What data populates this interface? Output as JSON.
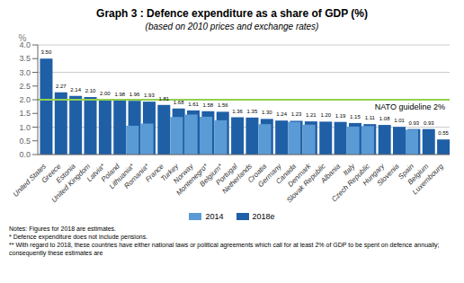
{
  "chart_data": {
    "type": "bar",
    "title": "Graph 3 : Defence expenditure as a share of GDP (%)",
    "subtitle": "(based on 2010 prices and exchange rates)",
    "y_label": "%",
    "categories": [
      "United States",
      "Greece",
      "Estonia",
      "United Kingdom",
      "Latvia*",
      "Poland",
      "Lithuania*",
      "Romania*",
      "France",
      "Turkey",
      "Norway",
      "Montenegro*",
      "Belgium*",
      "Portugal",
      "Netherlands",
      "Croatia",
      "Germany",
      "Canada",
      "Denmark",
      "Slovak Republic",
      "Albania",
      "Italy",
      "Czech Republic",
      "Hungary",
      "Slovenia",
      "Spain",
      "Belgium",
      "Luxembourg"
    ],
    "series": [
      {
        "name": "2014",
        "color": "#5b9bd5",
        "values": [
          null,
          null,
          null,
          null,
          null,
          null,
          1.05,
          1.13,
          null,
          1.37,
          1.46,
          1.38,
          1.25,
          null,
          null,
          1.11,
          null,
          1.19,
          1.09,
          null,
          null,
          1.02,
          1.04,
          null,
          null,
          0.91,
          null,
          null
        ]
      },
      {
        "name": "2018e",
        "color": "#1f5fa6",
        "data_labels": true,
        "values": [
          3.5,
          2.27,
          2.14,
          2.1,
          2.0,
          1.98,
          1.96,
          1.93,
          1.81,
          1.68,
          1.61,
          1.58,
          1.56,
          1.36,
          1.35,
          1.3,
          1.24,
          1.23,
          1.21,
          1.2,
          1.19,
          1.15,
          1.11,
          1.08,
          1.01,
          0.93,
          0.93,
          0.55
        ],
        "value_labels": [
          "3.50",
          "2.27",
          "2.14",
          "2.10",
          "2.00",
          "1.98",
          "1.96",
          "1.93",
          "1.81",
          "1.68",
          "1.61",
          "1.58",
          "1.56",
          "1.36",
          "1.35",
          "1.30",
          "1.24",
          "1.23",
          "1.21",
          "1.20",
          "1.19",
          "1.15",
          "1.11",
          "1.08",
          "1.01",
          "0.93",
          "0.93",
          "0.55"
        ]
      }
    ],
    "ylim": [
      0,
      4.0
    ],
    "yticks": [
      {
        "value": 0.0,
        "label": "0.0"
      },
      0.5,
      {
        "value": 1.0,
        "label": "1.0"
      },
      1.5,
      {
        "value": 2.0,
        "label": "2.0"
      },
      2.5,
      {
        "value": 3.0,
        "label": "3.0"
      },
      3.5,
      {
        "value": 4.0,
        "label": "4.0"
      }
    ],
    "grid": true,
    "reference_line": {
      "value": 2.0,
      "label": "NATO guideline 2%",
      "color": "#92d050"
    },
    "notes": [
      "Notes: Figures for 2018 are estimates.",
      "* Defence expenditure does not include pensions.",
      "** With regard to 2018, these countries have either national laws or political agreements which call for at least 2% of GDP to be spent on defence annually; consequently these estimates are"
    ]
  }
}
